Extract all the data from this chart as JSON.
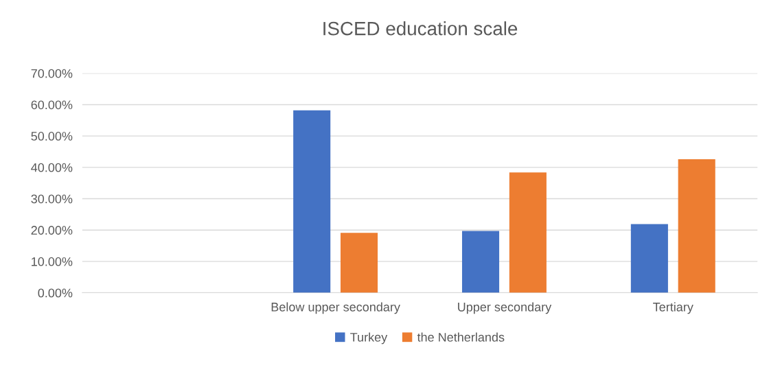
{
  "chart_data": {
    "type": "bar",
    "title": "ISCED education scale",
    "categories": [
      null,
      "Below upper secondary",
      "Upper secondary",
      "Tertiary"
    ],
    "series": [
      {
        "name": "Turkey",
        "color": "#4472c4",
        "values": [
          null,
          58.2,
          19.7,
          21.9
        ]
      },
      {
        "name": "the Netherlands",
        "color": "#ed7d31",
        "values": [
          null,
          19.1,
          38.4,
          42.6
        ]
      }
    ],
    "ylim": [
      0,
      70
    ],
    "yticks": [
      {
        "value": 0,
        "label": "0.00%"
      },
      {
        "value": 10,
        "label": "10.00%"
      },
      {
        "value": 20,
        "label": "20.00%"
      },
      {
        "value": 30,
        "label": "30.00%"
      },
      {
        "value": 40,
        "label": "40.00%"
      },
      {
        "value": 50,
        "label": "50.00%"
      },
      {
        "value": 60,
        "label": "60.00%"
      },
      {
        "value": 70,
        "label": "70.00%"
      }
    ],
    "grid": "y",
    "legend": "bottom"
  }
}
